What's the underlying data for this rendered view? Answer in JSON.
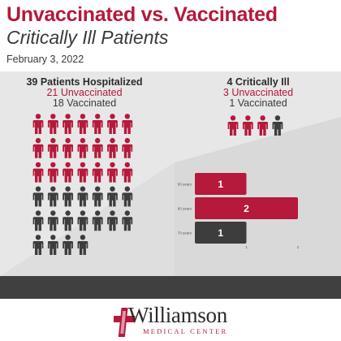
{
  "header": {
    "title": "Unvaccinated vs. Vaccinated",
    "subtitle": "Critically Ill Patients",
    "date": "February 3, 2022"
  },
  "hospitalized": {
    "heading": "39 Patients Hospitalized",
    "unvaccinated_label": "21 Unvaccinated",
    "vaccinated_label": "18 Vaccinated",
    "unvaccinated_count": 21,
    "vaccinated_count": 18
  },
  "critical": {
    "heading": "4 Critically Ill",
    "unvaccinated_label": "3 Unvaccinated",
    "vaccinated_label": "1 Vaccinated",
    "unvaccinated_count": 3,
    "vaccinated_count": 1
  },
  "colors": {
    "unvaccinated": "#b5193b",
    "vaccinated": "#3d3d3d",
    "panel": "#e7e7e8",
    "footer_band": "#404041"
  },
  "chart_data": {
    "type": "bar",
    "orientation": "horizontal",
    "categories": [
      "50 years",
      "60 years",
      "70 years"
    ],
    "values": [
      1,
      2,
      1
    ],
    "bar_colors": [
      "#b5193b",
      "#b5193b",
      "#3d3d3d"
    ],
    "data_labels": [
      "1",
      "2",
      "1"
    ],
    "x_ticks": [
      "1",
      "2"
    ],
    "xlim": [
      0,
      2
    ],
    "grid": false
  },
  "logo": {
    "name": "Williamson",
    "tagline": "MEDICAL CENTER",
    "icon": "cross-icon"
  }
}
